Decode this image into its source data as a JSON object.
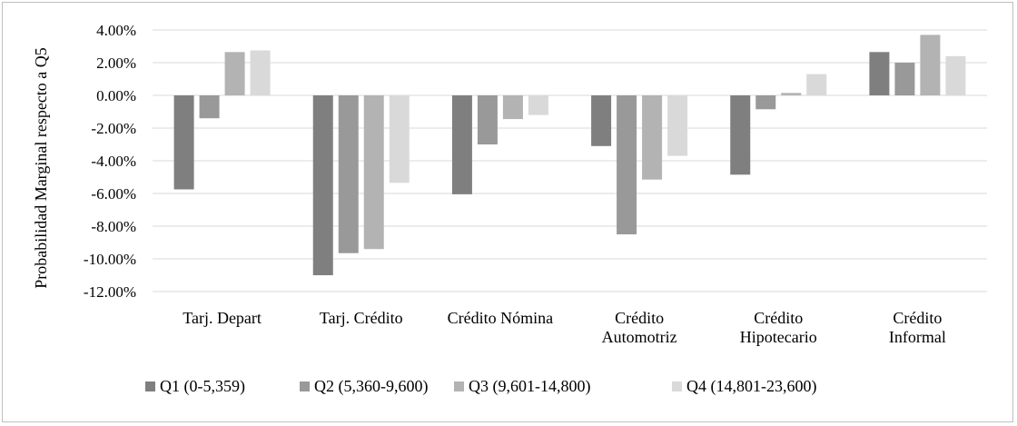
{
  "chart_data": {
    "type": "bar",
    "ylabel": "Probabilidad Marginal respecto a Q5",
    "xlabel": "",
    "ylim": [
      -0.12,
      0.04
    ],
    "yticks": [
      0.04,
      0.02,
      0.0,
      -0.02,
      -0.04,
      -0.06,
      -0.08,
      -0.1,
      -0.12
    ],
    "ytick_labels": [
      "4.00%",
      "2.00%",
      "0.00%",
      "-2.00%",
      "-4.00%",
      "-6.00%",
      "-8.00%",
      "-10.00%",
      "-12.00%"
    ],
    "grid": true,
    "legend_position": "bottom",
    "categories": [
      [
        "Tarj. Depart"
      ],
      [
        "Tarj. Crédito"
      ],
      [
        "Crédito Nómina"
      ],
      [
        "Crédito",
        "Automotriz"
      ],
      [
        "Crédito",
        "Hipotecario"
      ],
      [
        "Crédito",
        "Informal"
      ]
    ],
    "series": [
      {
        "name": "Q1 (0-5,359)",
        "color": "#7f7f7f",
        "values": [
          -0.0575,
          -0.11,
          -0.0605,
          -0.031,
          -0.0485,
          0.0265
        ]
      },
      {
        "name": "Q2 (5,360-9,600)",
        "color": "#999999",
        "values": [
          -0.014,
          -0.0965,
          -0.03,
          -0.085,
          -0.0085,
          0.02
        ]
      },
      {
        "name": "Q3 (9,601-14,800)",
        "color": "#b3b3b3",
        "values": [
          0.0265,
          -0.094,
          -0.0145,
          -0.0515,
          0.0015,
          0.037
        ]
      },
      {
        "name": "Q4 (14,801-23,600)",
        "color": "#d9d9d9",
        "values": [
          0.0275,
          -0.0535,
          -0.012,
          -0.037,
          0.013,
          0.024
        ]
      }
    ]
  }
}
